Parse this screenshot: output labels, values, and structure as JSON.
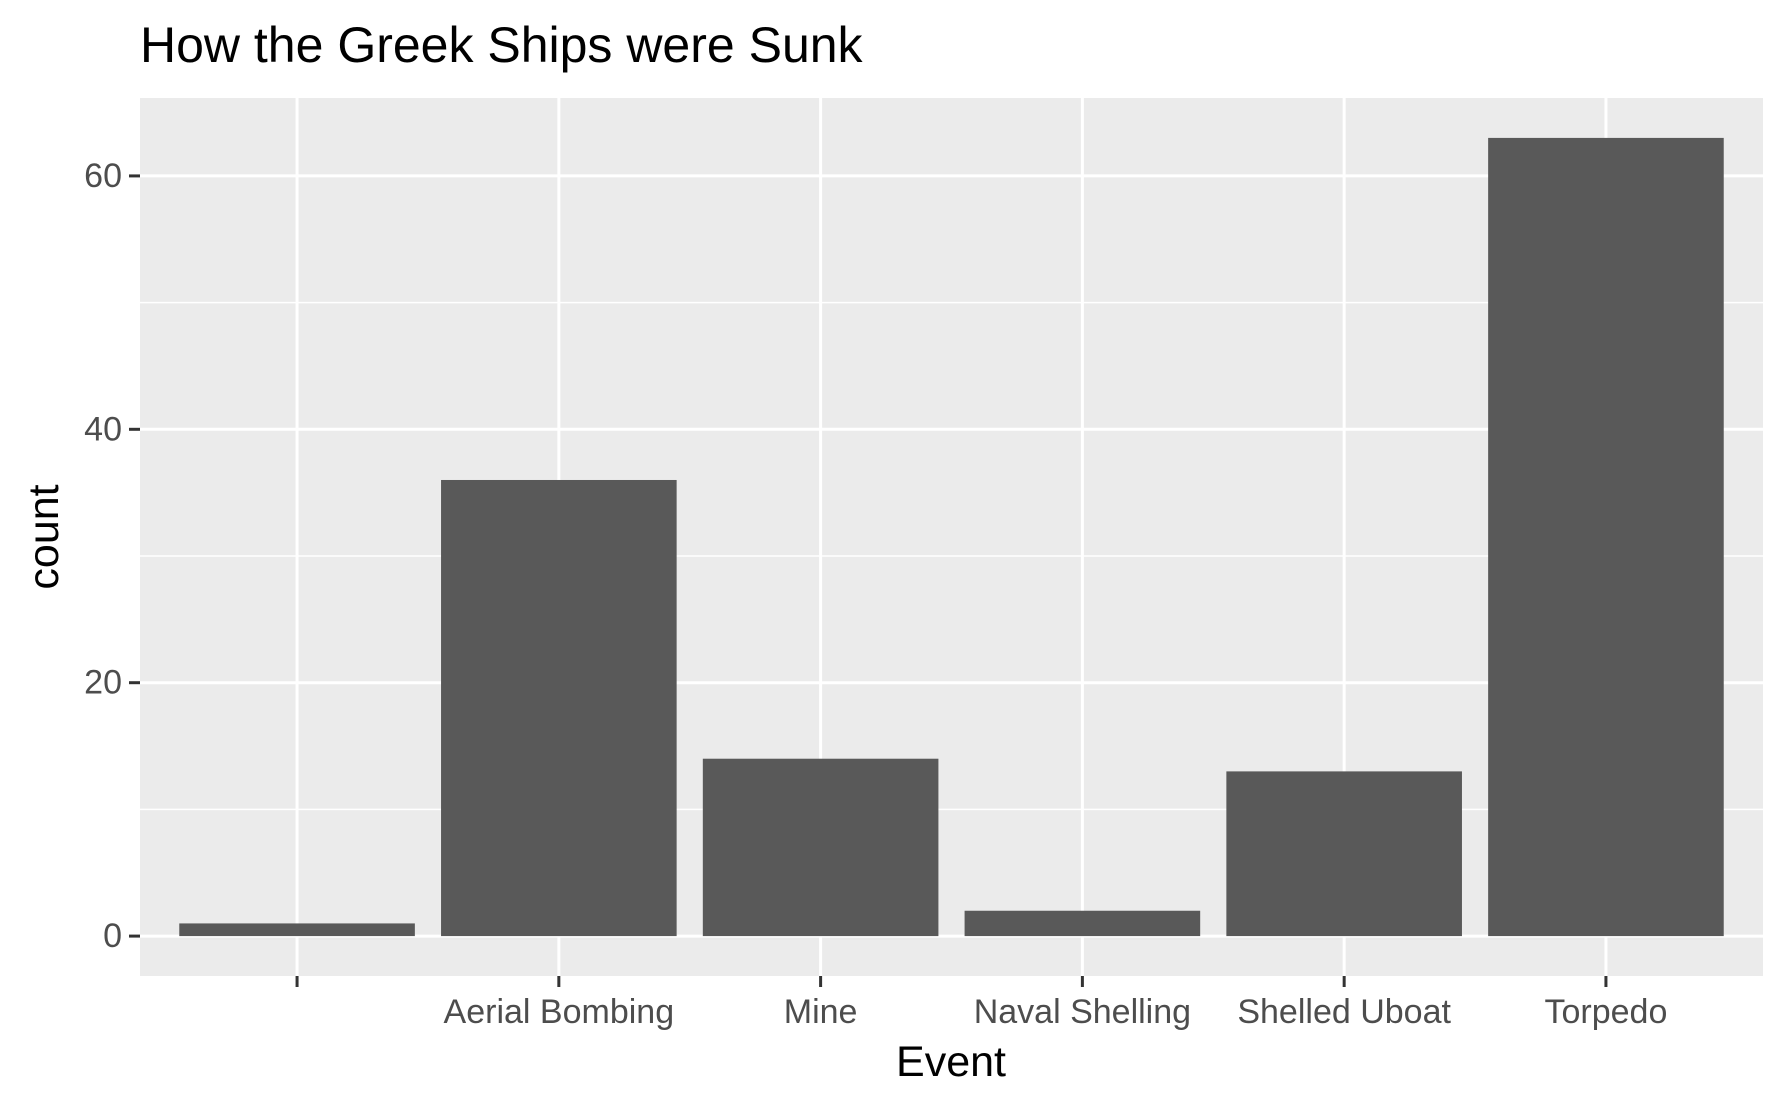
{
  "chart_data": {
    "type": "bar",
    "title": "How the Greek Ships were Sunk",
    "xlabel": "Event",
    "ylabel": "count",
    "categories": [
      "",
      "Aerial Bombing",
      "Mine",
      "Naval Shelling",
      "Shelled Uboat",
      "Torpedo"
    ],
    "values": [
      1,
      36,
      14,
      2,
      13,
      63
    ],
    "ylim": [
      -3.15,
      66.15
    ],
    "yticks": [
      0,
      20,
      40,
      60
    ],
    "ytick_labels": [
      "0",
      "20",
      "40",
      "60"
    ],
    "grid": true,
    "legend": "none",
    "colors": {
      "bar": "#595959",
      "panel": "#ebebeb",
      "grid": "#ffffff",
      "text": "#000000",
      "tick_text": "#4d4d4d",
      "tick_mark": "#333333"
    }
  }
}
